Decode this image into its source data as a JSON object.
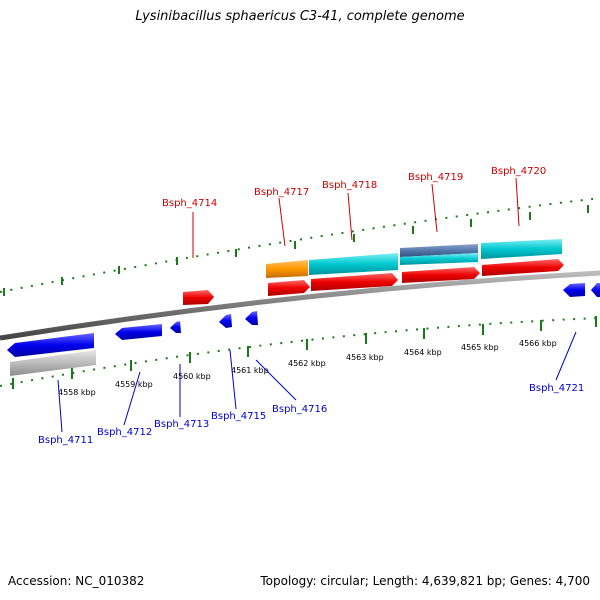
{
  "title": "Lysinibacillus sphaericus C3-41, complete genome",
  "footer": {
    "accession": "Accession: NC_010382",
    "summary": "Topology: circular; Length: 4,639,821 bp; Genes: 4,700"
  },
  "colors": {
    "forward_label": "#cc0000",
    "reverse_label": "#0000cc",
    "cds_forward": "#ee0000",
    "cds_reverse": "#0000ee",
    "rna": "#00c8d0",
    "orange_feature": "#ff9900",
    "steelblue_feature": "#5577aa",
    "pseudo_gray": "#bbbbbb",
    "backbone": "#888888",
    "tick_green": "#1a7a1a"
  },
  "kbp_labels": [
    "4558 kbp",
    "4559 kbp",
    "4560 kbp",
    "4561 kbp",
    "4562 kbp",
    "4563 kbp",
    "4564 kbp",
    "4565 kbp",
    "4566 kbp"
  ],
  "genes_forward": [
    {
      "name": "Bsph_4714"
    },
    {
      "name": "Bsph_4717"
    },
    {
      "name": "Bsph_4718"
    },
    {
      "name": "Bsph_4719"
    },
    {
      "name": "Bsph_4720"
    }
  ],
  "genes_reverse": [
    {
      "name": "Bsph_4711"
    },
    {
      "name": "Bsph_4712"
    },
    {
      "name": "Bsph_4713"
    },
    {
      "name": "Bsph_4715"
    },
    {
      "name": "Bsph_4716"
    },
    {
      "name": "Bsph_4721"
    }
  ]
}
